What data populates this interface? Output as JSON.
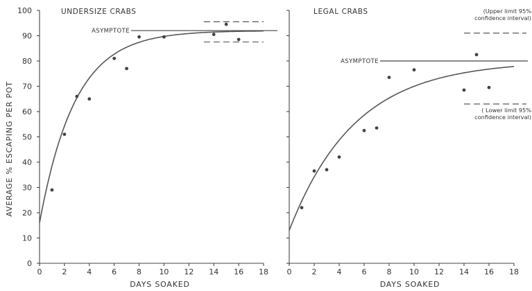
{
  "chart_data": [
    {
      "type": "scatter",
      "title": "UNDERSIZE CRABS",
      "xlabel": "DAYS SOAKED",
      "ylabel": "AVERAGE % ESCAPING PER POT",
      "xlim": [
        0,
        18
      ],
      "ylim": [
        0,
        100
      ],
      "xticks": [
        0,
        2,
        4,
        6,
        8,
        10,
        12,
        14,
        16,
        18
      ],
      "yticks": [
        0,
        10,
        20,
        30,
        40,
        50,
        60,
        70,
        80,
        90,
        100
      ],
      "points": [
        {
          "x": 1,
          "y": 29
        },
        {
          "x": 2,
          "y": 51
        },
        {
          "x": 3,
          "y": 66
        },
        {
          "x": 4,
          "y": 65
        },
        {
          "x": 6,
          "y": 81
        },
        {
          "x": 7,
          "y": 77
        },
        {
          "x": 8,
          "y": 89.5
        },
        {
          "x": 10,
          "y": 89.5
        },
        {
          "x": 14,
          "y": 90.5
        },
        {
          "x": 15,
          "y": 94.5
        },
        {
          "x": 16,
          "y": 88.5
        }
      ],
      "fit_curve": {
        "y0": 16,
        "asymptote": 92,
        "rate": 0.35
      },
      "asymptote": {
        "value": 92,
        "label": "ASYMPTOTE"
      },
      "confidence_interval": {
        "upper": 95.5,
        "lower": 87.5,
        "x_range": [
          13.2,
          18
        ]
      },
      "grid": false
    },
    {
      "type": "scatter",
      "title": "LEGAL CRABS",
      "xlabel": "DAYS SOAKED",
      "ylabel": "",
      "xlim": [
        0,
        18
      ],
      "ylim": [
        0,
        100
      ],
      "xticks": [
        0,
        2,
        4,
        6,
        8,
        10,
        12,
        14,
        16,
        18
      ],
      "yticks": [
        0,
        10,
        20,
        30,
        40,
        50,
        60,
        70,
        80,
        90,
        100
      ],
      "points": [
        {
          "x": 1,
          "y": 22
        },
        {
          "x": 2,
          "y": 36.5
        },
        {
          "x": 3,
          "y": 37
        },
        {
          "x": 4,
          "y": 42
        },
        {
          "x": 6,
          "y": 52.5
        },
        {
          "x": 7,
          "y": 53.5
        },
        {
          "x": 8,
          "y": 73.5
        },
        {
          "x": 10,
          "y": 76.5
        },
        {
          "x": 14,
          "y": 68.5
        },
        {
          "x": 15,
          "y": 82.5
        },
        {
          "x": 16,
          "y": 69.5
        }
      ],
      "fit_curve": {
        "y0": 13,
        "asymptote": 80,
        "rate": 0.19
      },
      "asymptote": {
        "value": 80,
        "label": "ASYMPTOTE"
      },
      "confidence_interval": {
        "upper": 91,
        "lower": 63,
        "x_range": [
          14,
          19
        ],
        "upper_label": [
          "(Upper limit 95%",
          "confidence interval)"
        ],
        "lower_label": [
          "( Lower limit 95%",
          "confidence interval)"
        ]
      },
      "grid": false
    }
  ]
}
